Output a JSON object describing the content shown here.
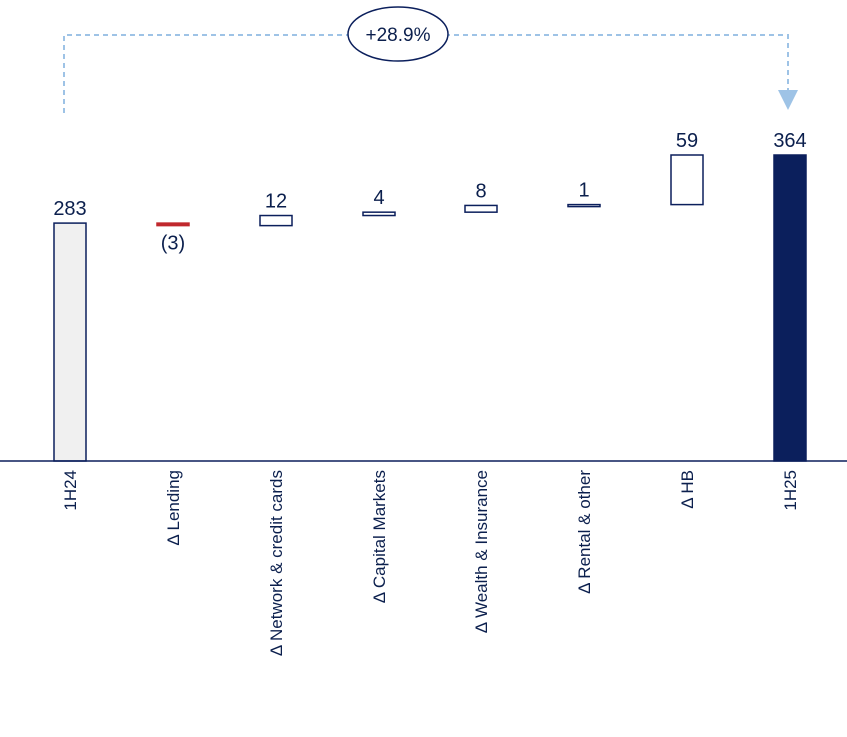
{
  "chart_data": {
    "type": "waterfall",
    "categories": [
      "1H24",
      "Δ Lending",
      "Δ Network & credit cards",
      "Δ Capital Markets",
      "Δ Wealth & Insurance",
      "Δ Rental & other",
      "Δ HB",
      "1H25"
    ],
    "values": [
      283,
      -3,
      12,
      4,
      8,
      1,
      59,
      364
    ],
    "value_labels": [
      "283",
      "(3)",
      "12",
      "4",
      "8",
      "1",
      "59",
      "364"
    ],
    "kinds": [
      "total",
      "delta",
      "delta",
      "delta",
      "delta",
      "delta",
      "delta",
      "total"
    ],
    "growth_annotation": "+28.9%",
    "ylim": [
      0,
      364
    ],
    "grid": false,
    "colors": {
      "start_total_fill": "#f0f0f0",
      "end_total_fill": "#0b1f5c",
      "positive_fill": "#ffffff",
      "negative_fill": "#c0282d",
      "outline": "#0b1f5c",
      "connector": "#9ec3e6",
      "text": "#0b1f4d"
    }
  }
}
